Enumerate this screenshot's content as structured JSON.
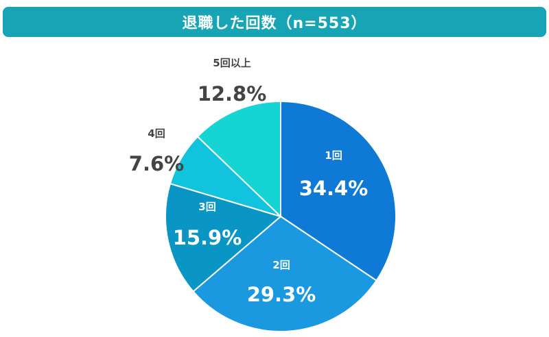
{
  "chart_data": {
    "type": "pie",
    "title": "退職した回数（n=553）",
    "slices": [
      {
        "label": "1回",
        "percent_label": "34.4%",
        "value": 34.4,
        "color": "#0e7ad6",
        "text_color": "#ffffff"
      },
      {
        "label": "2回",
        "percent_label": "29.3%",
        "value": 29.3,
        "color": "#1a98e0",
        "text_color": "#ffffff"
      },
      {
        "label": "3回",
        "percent_label": "15.9%",
        "value": 15.9,
        "color": "#0a96c4",
        "text_color": "#ffffff"
      },
      {
        "label": "4回",
        "percent_label": "7.6%",
        "value": 7.6,
        "color": "#12c3dd",
        "text_color": "#444444"
      },
      {
        "label": "5回以上",
        "percent_label": "12.8%",
        "value": 12.8,
        "color": "#15d4d4",
        "text_color": "#444444"
      }
    ]
  }
}
